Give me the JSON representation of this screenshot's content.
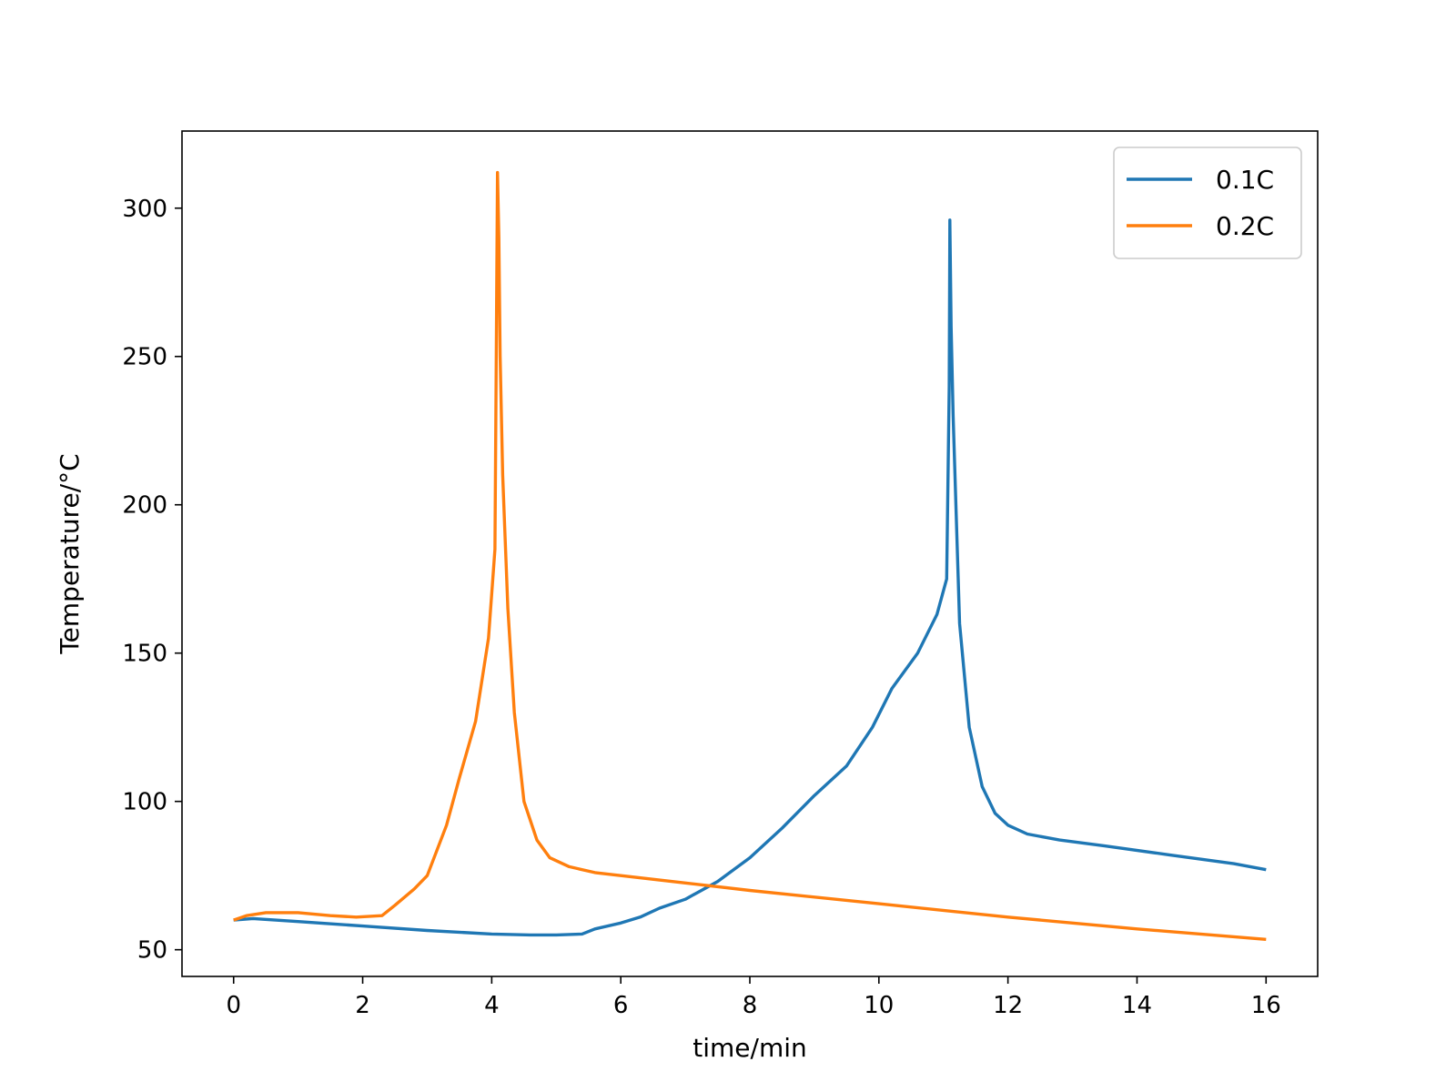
{
  "chart_data": {
    "type": "line",
    "title": "",
    "xlabel": "time/min",
    "ylabel": "Temperature/°C",
    "xlim": [
      -0.8,
      16.8
    ],
    "ylim": [
      41,
      326
    ],
    "xticks": [
      0,
      2,
      4,
      6,
      8,
      10,
      12,
      14,
      16
    ],
    "yticks": [
      50,
      100,
      150,
      200,
      250,
      300
    ],
    "grid": false,
    "legend_position": "top-right",
    "series": [
      {
        "name": "0.1C",
        "color": "#1f77b4",
        "x": [
          0,
          0.3,
          1,
          2,
          3,
          4,
          4.6,
          5,
          5.4,
          5.6,
          6,
          6.3,
          6.6,
          7,
          7.5,
          8,
          8.5,
          9,
          9.5,
          9.9,
          10.2,
          10.6,
          10.9,
          11.05,
          11.09,
          11.1,
          11.12,
          11.15,
          11.25,
          11.4,
          11.6,
          11.8,
          12.0,
          12.3,
          12.8,
          13.5,
          14.5,
          15.5,
          16
        ],
        "y": [
          60,
          60.5,
          59.5,
          58,
          56.5,
          55.3,
          55,
          55,
          55.3,
          57,
          59,
          61,
          64,
          67,
          73,
          81,
          91,
          102,
          112,
          125,
          138,
          150,
          163,
          175,
          240,
          296,
          260,
          230,
          160,
          125,
          105,
          96,
          92,
          89,
          87,
          85,
          82,
          79,
          77
        ]
      },
      {
        "name": "0.2C",
        "color": "#ff7f0e",
        "x": [
          0,
          0.2,
          0.5,
          1,
          1.5,
          1.9,
          2.3,
          2.5,
          2.8,
          3.0,
          3.3,
          3.5,
          3.75,
          3.95,
          4.05,
          4.09,
          4.11,
          4.13,
          4.17,
          4.25,
          4.35,
          4.5,
          4.7,
          4.9,
          5.2,
          5.6,
          6,
          7,
          8,
          10,
          12,
          14,
          16
        ],
        "y": [
          60,
          61.5,
          62.5,
          62.5,
          61.5,
          61,
          61.5,
          65,
          70.5,
          75,
          92,
          108,
          127,
          155,
          185,
          312,
          290,
          250,
          210,
          165,
          130,
          100,
          87,
          81,
          78,
          76,
          75,
          72.5,
          70,
          65.5,
          61,
          57,
          53.5
        ]
      }
    ]
  }
}
